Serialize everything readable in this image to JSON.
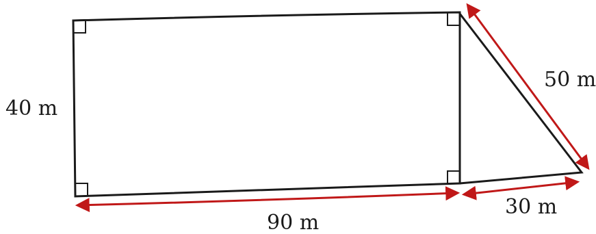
{
  "diagram": {
    "labels": {
      "rect_height": "40 m",
      "rect_width": "90 m",
      "triangle_base": "30 m",
      "triangle_hypotenuse": "50 m"
    },
    "colors": {
      "outline": "#1a1a1a",
      "dimension_arrow": "#c01818"
    }
  }
}
